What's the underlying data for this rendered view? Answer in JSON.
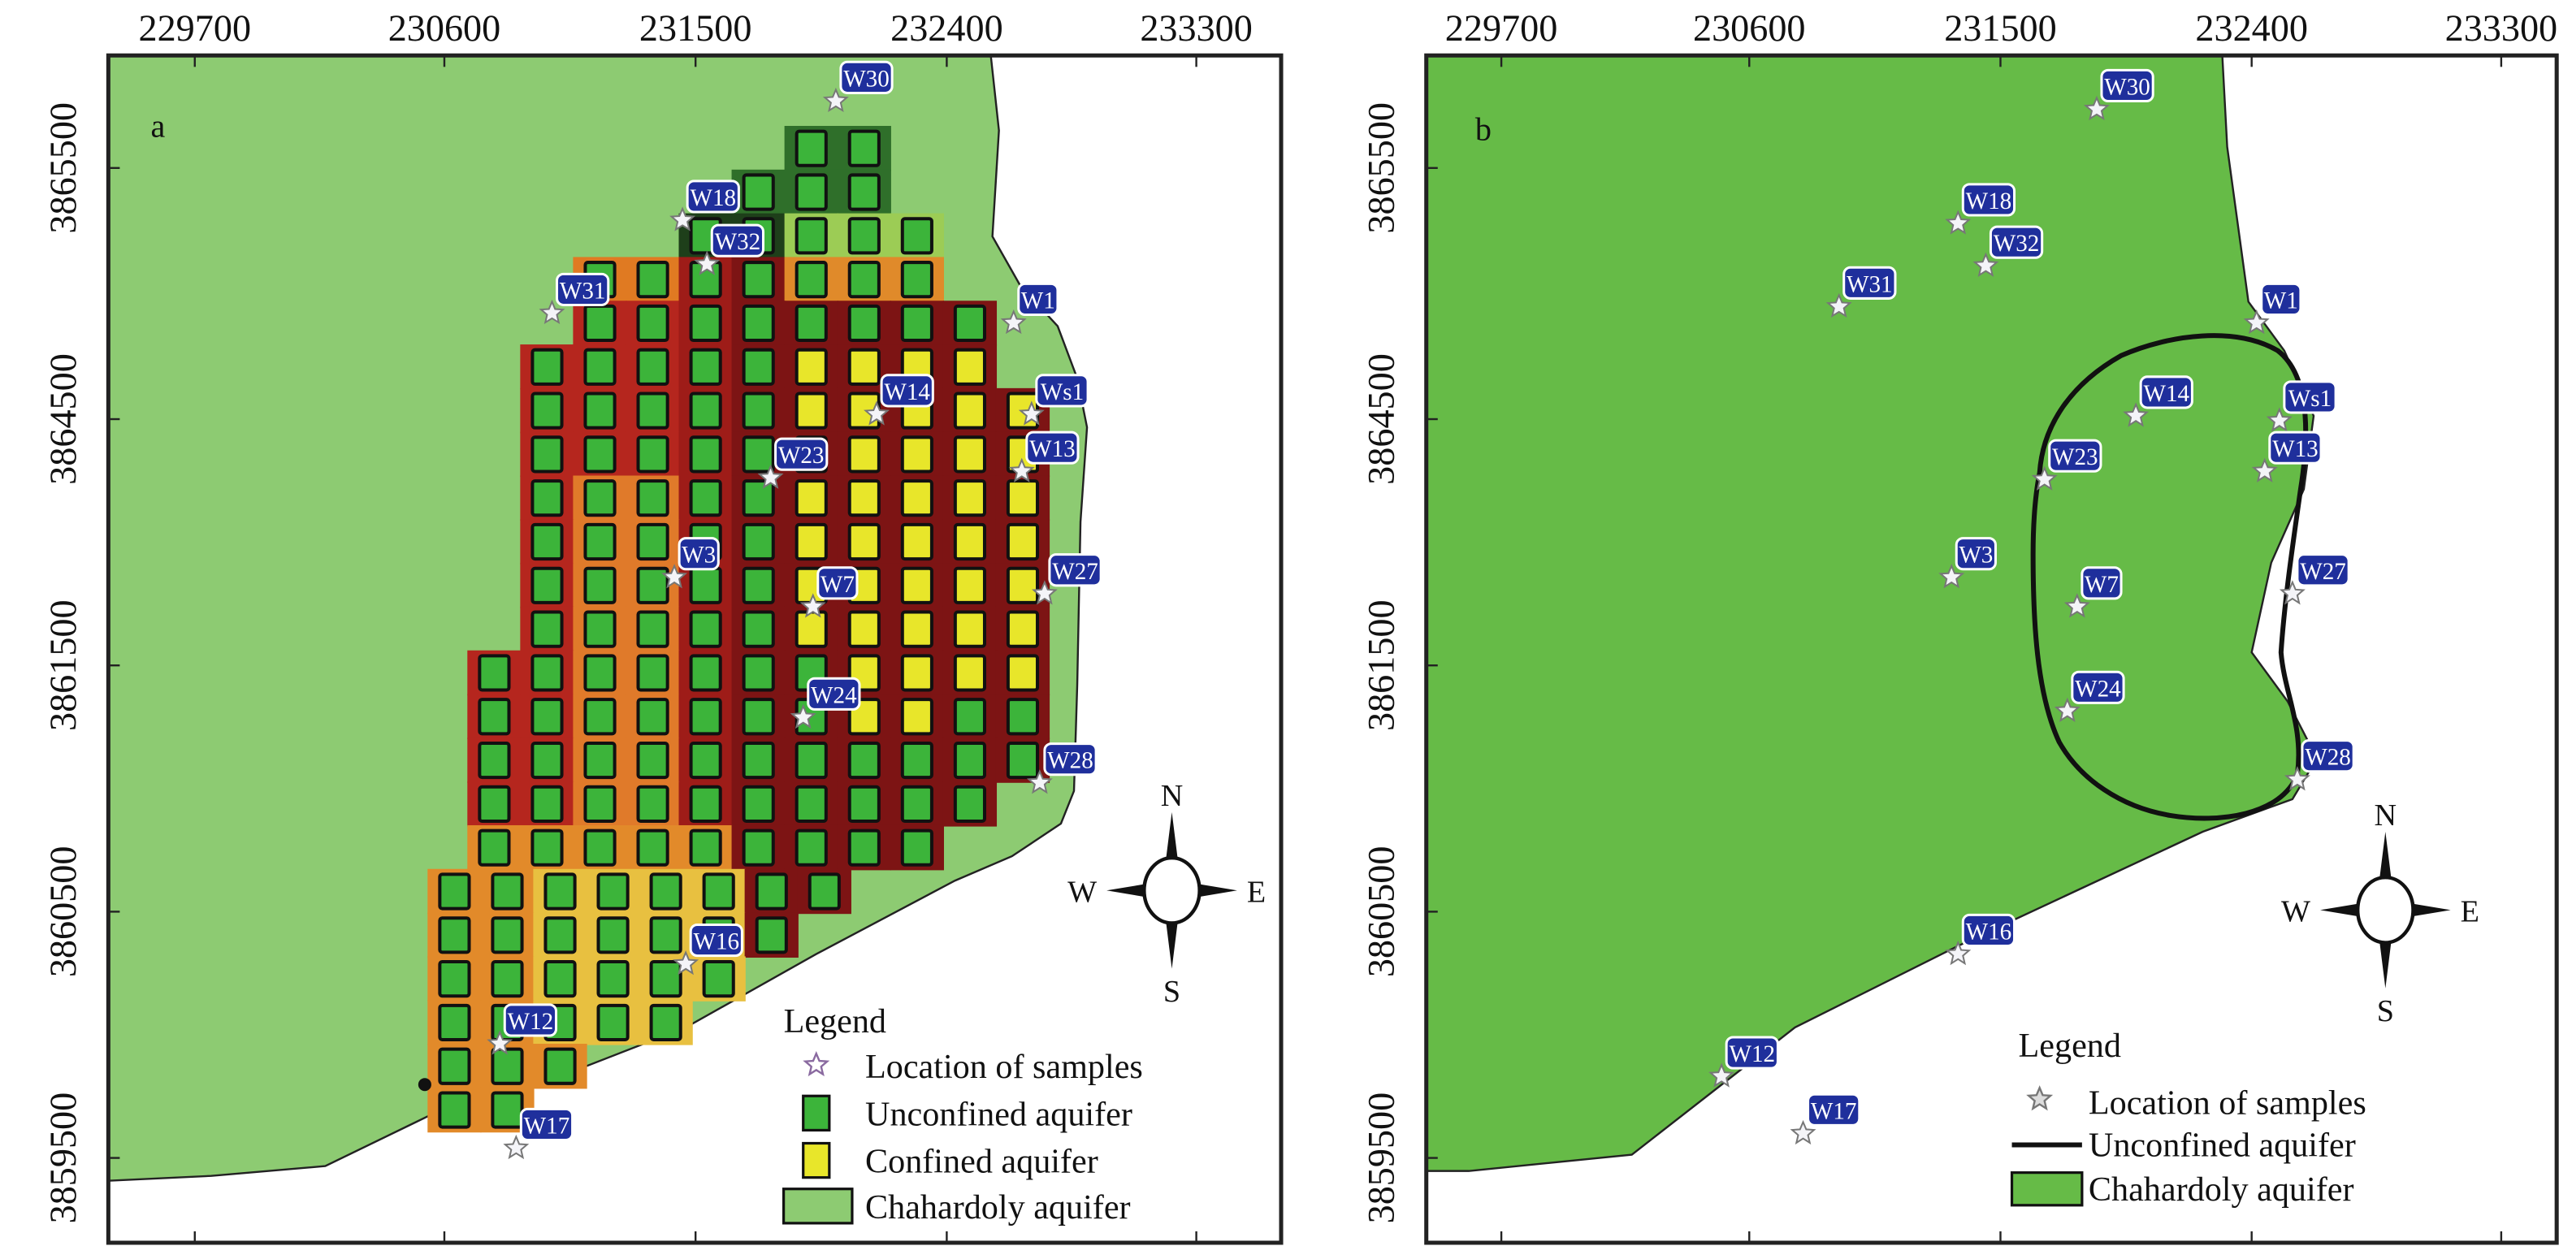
{
  "axes": {
    "x_ticks": [
      "229700",
      "230600",
      "231500",
      "232400",
      "233300"
    ],
    "y_ticks": [
      "3865500",
      "3864500",
      "3861500",
      "3860500",
      "3859500"
    ]
  },
  "wells": [
    "W30",
    "W18",
    "W32",
    "W31",
    "W1",
    "W14",
    "Ws1",
    "W13",
    "W23",
    "W3",
    "W7",
    "W27",
    "W24",
    "W28",
    "W16",
    "W12",
    "W17"
  ],
  "panel_a": {
    "label": "a",
    "compass": {
      "n": "N",
      "s": "S",
      "w": "W",
      "e": "E"
    },
    "legend": {
      "title": "Legend",
      "items": [
        "Location of samples",
        "Unconfined aquifer",
        "Confined aquifer",
        "Chahardoly aquifer"
      ]
    },
    "grid_legend": {
      "G": "Unconfined aquifer",
      "Y": "Confined aquifer"
    },
    "grid_rows": [
      ".......GG...",
      "......GGG...",
      ".....GGGGG..",
      "...GGGGGGG..",
      "...GGGGGGGG.",
      "..GGGGGYYYY.",
      "..GGGGGYYYYY",
      "..GGGGGYYYYY",
      "..GGGGGYYYYY",
      "..GGGGGYYYYY",
      "..GGGGGYYYYY",
      "..GGGGGYYYYY",
      ".GGGGGGGYYYY",
      ".GGGGGGGYYGG",
      ".GGGGGGGGGGG",
      ".GGGGGGGGGG.",
      ".GGGGGGGGG..",
      "GGGGGGGG....",
      "GGGGGGG.....",
      "GGGGGG......",
      "GGGGG.......",
      "GGG.........",
      "GG.........."
    ]
  },
  "panel_b": {
    "label": "b",
    "compass": {
      "n": "N",
      "s": "S",
      "w": "W",
      "e": "E"
    },
    "legend": {
      "title": "Legend",
      "items": [
        "Location of samples",
        "Unconfined aquifer",
        "Chahardoly aquifer"
      ]
    }
  },
  "colors": {
    "chahardoly_a": "#8dcb72",
    "chahardoly_b": "#66bb47",
    "unconfined_cell": "#3cb43a",
    "confined_cell": "#e8e62a",
    "label_bg": "#1f2f9c",
    "boundary": "#111111"
  }
}
